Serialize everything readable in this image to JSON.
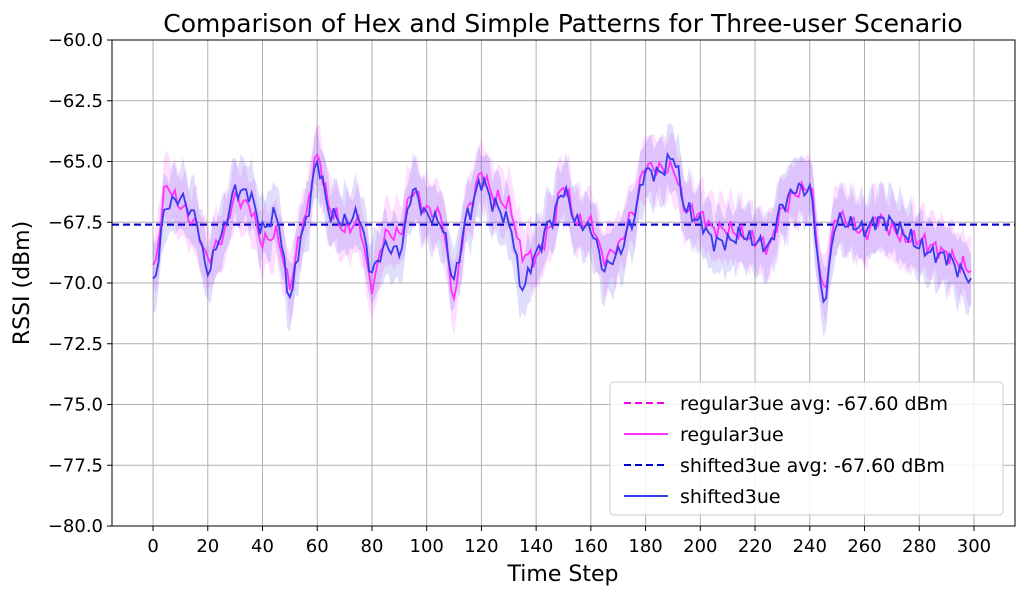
{
  "chart_data": {
    "type": "line",
    "title": "Comparison of Hex and Simple Patterns for Three-user Scenario",
    "xlabel": "Time Step",
    "ylabel": "RSSI (dBm)",
    "xlim": [
      -15,
      315
    ],
    "ylim": [
      -80.0,
      -60.0
    ],
    "xticks": [
      0,
      20,
      40,
      60,
      80,
      100,
      120,
      140,
      160,
      180,
      200,
      220,
      240,
      260,
      280,
      300
    ],
    "yticks": [
      -80.0,
      -77.5,
      -75.0,
      -72.5,
      -70.0,
      -67.5,
      -65.0,
      -62.5,
      -60.0
    ],
    "ytick_labels": [
      "−80.0",
      "−77.5",
      "−75.0",
      "−72.5",
      "−70.0",
      "−67.5",
      "−65.0",
      "−62.5",
      "−60.0"
    ],
    "grid": true,
    "legend_position": "bottom-right",
    "series": [
      {
        "name": "regular3ue",
        "color": "#ff33ff",
        "style": "solid",
        "x": [
          0,
          5,
          10,
          15,
          20,
          25,
          30,
          35,
          40,
          45,
          50,
          55,
          60,
          65,
          70,
          75,
          80,
          85,
          90,
          95,
          100,
          105,
          110,
          115,
          120,
          125,
          130,
          135,
          140,
          145,
          150,
          155,
          160,
          165,
          170,
          175,
          180,
          185,
          190,
          195,
          200,
          205,
          210,
          215,
          220,
          225,
          230,
          235,
          240,
          245,
          250,
          255,
          260,
          265,
          270,
          275,
          280,
          285,
          290,
          295,
          299
        ],
        "y": [
          -69.5,
          -66.0,
          -66.8,
          -67.5,
          -69.0,
          -68.2,
          -66.5,
          -66.8,
          -68.3,
          -68.0,
          -70.0,
          -67.5,
          -64.8,
          -67.0,
          -67.8,
          -67.5,
          -70.1,
          -68.0,
          -68.0,
          -66.2,
          -67.0,
          -67.2,
          -70.5,
          -67.0,
          -65.5,
          -66.5,
          -66.8,
          -68.8,
          -69.0,
          -67.8,
          -66.0,
          -67.5,
          -67.5,
          -69.0,
          -68.5,
          -67.2,
          -65.2,
          -65.3,
          -65.3,
          -67.0,
          -67.2,
          -67.8,
          -67.8,
          -68.0,
          -68.2,
          -68.5,
          -67.0,
          -66.3,
          -66.0,
          -70.3,
          -67.2,
          -67.5,
          -68.0,
          -67.3,
          -67.8,
          -68.2,
          -68.2,
          -68.5,
          -68.8,
          -69.2,
          -69.5
        ]
      },
      {
        "name": "shifted3ue",
        "color": "#3a3aee",
        "style": "solid",
        "x": [
          0,
          5,
          10,
          15,
          20,
          25,
          30,
          35,
          40,
          45,
          50,
          55,
          60,
          65,
          70,
          75,
          80,
          85,
          90,
          95,
          100,
          105,
          110,
          115,
          120,
          125,
          130,
          135,
          140,
          145,
          150,
          155,
          160,
          165,
          170,
          175,
          180,
          185,
          190,
          195,
          200,
          205,
          210,
          215,
          220,
          225,
          230,
          235,
          240,
          245,
          250,
          255,
          260,
          265,
          270,
          275,
          280,
          285,
          290,
          295,
          299
        ],
        "y": [
          -70.0,
          -66.8,
          -66.5,
          -67.2,
          -69.5,
          -68.0,
          -66.2,
          -66.3,
          -67.8,
          -67.2,
          -70.5,
          -67.8,
          -65.1,
          -67.2,
          -67.5,
          -67.2,
          -69.5,
          -68.5,
          -68.7,
          -66.2,
          -67.2,
          -67.5,
          -69.8,
          -67.2,
          -65.8,
          -66.8,
          -67.5,
          -70.2,
          -68.8,
          -67.5,
          -66.2,
          -67.5,
          -67.8,
          -69.4,
          -68.8,
          -67.5,
          -65.4,
          -65.5,
          -64.8,
          -67.0,
          -67.5,
          -68.3,
          -68.3,
          -68.0,
          -68.3,
          -68.5,
          -66.8,
          -66.1,
          -66.2,
          -70.7,
          -67.4,
          -67.6,
          -67.8,
          -67.4,
          -67.5,
          -68.0,
          -68.5,
          -68.8,
          -68.9,
          -69.5,
          -69.8
        ]
      }
    ],
    "averages": [
      {
        "name": "regular3ue avg: -67.60 dBm",
        "value": -67.6,
        "color": "#ee00ee",
        "style": "dashed"
      },
      {
        "name": "shifted3ue avg: -67.60 dBm",
        "value": -67.6,
        "color": "#0000cc",
        "style": "dashed"
      }
    ]
  }
}
